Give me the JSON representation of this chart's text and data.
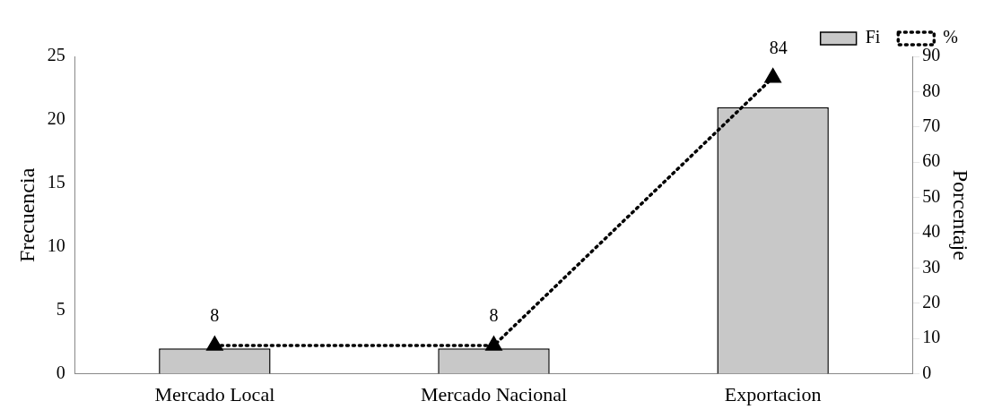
{
  "chart_data": {
    "type": "bar",
    "ylabel": "Frecuencia",
    "y2label": "Porcentaje",
    "categories": [
      "Mercado Local",
      "Mercado Nacional",
      "Exportacion"
    ],
    "series": [
      {
        "name": "Fi",
        "color": "#c8c8c8",
        "values": [
          2,
          2,
          21
        ]
      },
      {
        "name": "%",
        "type": "line",
        "axis": "y2",
        "color": "#000000",
        "values": [
          8,
          8,
          84
        ],
        "value_labels": [
          "8",
          "8",
          "84"
        ],
        "marker": "triangle",
        "line_style": "dotted"
      }
    ],
    "ylim": [
      0,
      25
    ],
    "yticks": [
      0,
      5,
      10,
      15,
      20,
      25
    ],
    "y2lim": [
      0,
      90
    ],
    "y2ticks": [
      0,
      10,
      20,
      30,
      40,
      50,
      60,
      70,
      80,
      90
    ],
    "grid": false,
    "legend": "top right"
  }
}
